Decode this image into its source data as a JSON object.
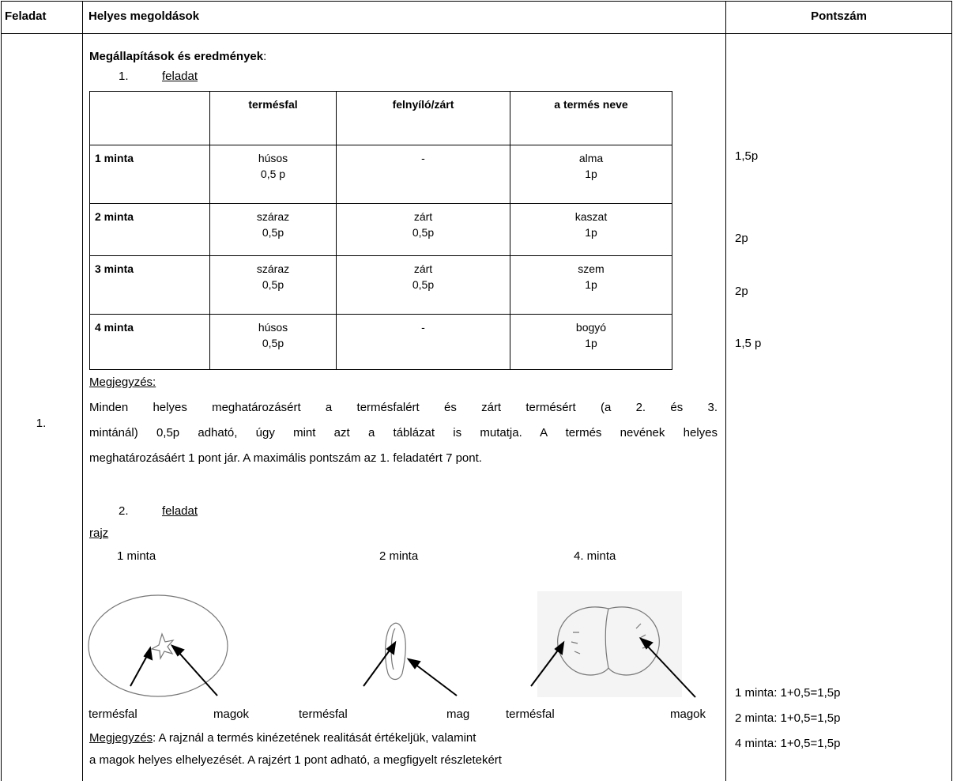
{
  "header": {
    "feladat": "Feladat",
    "megoldasok": "Helyes megoldások",
    "pontszam": "Pontszám"
  },
  "task_number": "1.",
  "section_title": {
    "bold": "Megállapítások és eredmények",
    "rest": ":"
  },
  "task1": {
    "number": "1.",
    "label": "feladat"
  },
  "table": {
    "header": [
      "termésfal",
      "felnyíló/zárt",
      "a termés neve"
    ],
    "rows": [
      {
        "label": "1 minta",
        "cells": [
          [
            "húsos",
            "0,5 p"
          ],
          [
            "-"
          ],
          [
            "alma",
            "1p"
          ]
        ]
      },
      {
        "label": "2 minta",
        "cells": [
          [
            "száraz",
            "0,5p"
          ],
          [
            "zárt",
            "0,5p"
          ],
          [
            "kaszat",
            "1p"
          ]
        ]
      },
      {
        "label": "3 minta",
        "cells": [
          [
            "száraz",
            "0,5p"
          ],
          [
            "zárt",
            "0,5p"
          ],
          [
            "szem",
            "1p"
          ]
        ]
      },
      {
        "label": "4 minta",
        "cells": [
          [
            "húsos",
            "0,5p"
          ],
          [
            "-"
          ],
          [
            "bogyó",
            "1p"
          ]
        ]
      }
    ]
  },
  "points1": [
    "1,5p",
    "2p",
    "2p",
    "1,5 p"
  ],
  "note1": {
    "label": "Megjegyzés:",
    "lines": [
      "Minden helyes meghatározásért a termésfalért és zárt termésért (a 2. és 3.",
      "mintánál) 0,5p adható, úgy mint azt a táblázat is mutatja.  A termés nevének helyes",
      "meghatározásáért 1 pont jár. A maximális pontszám az 1. feladatért 7 pont."
    ]
  },
  "task2": {
    "number": "2.",
    "label": "feladat",
    "drawing_label": "rajz",
    "samples": [
      "1 minta",
      "2 minta",
      "4. minta"
    ],
    "annotations": [
      [
        "termésfal",
        "magok"
      ],
      [
        "termésfal",
        "mag"
      ],
      [
        "termésfal",
        "magok"
      ]
    ]
  },
  "note2": {
    "label": "Megjegyzés",
    "first_rest": ": A rajznál a termés kinézetének realitását értékeljük, valamint",
    "second_line": "a magok helyes elhelyezését. A rajzért 1 pont adható, a megfigyelt részletekért"
  },
  "points2": [
    "1 minta: 1+0,5=1,5p",
    "2 minta: 1+0,5=1,5p",
    "4 minta: 1+0,5=1,5p"
  ]
}
